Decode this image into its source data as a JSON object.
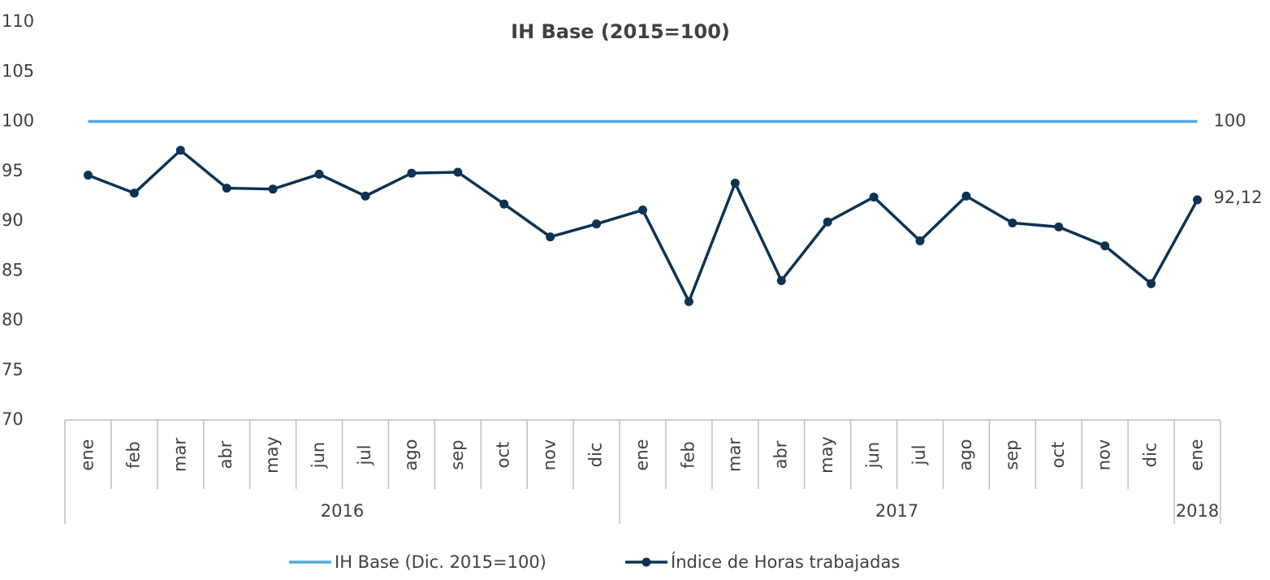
{
  "chart_data": {
    "type": "line",
    "title": "IH Base (2015=100)",
    "categories": [
      "ene",
      "feb",
      "mar",
      "abr",
      "may",
      "jun",
      "jul",
      "ago",
      "sep",
      "oct",
      "nov",
      "dic",
      "ene",
      "feb",
      "mar",
      "abr",
      "may",
      "jun",
      "jul",
      "ago",
      "sep",
      "oct",
      "nov",
      "dic",
      "ene"
    ],
    "x_groups": [
      {
        "label": "2016",
        "span": 12
      },
      {
        "label": "2017",
        "span": 12
      },
      {
        "label": "2018",
        "span": 1
      }
    ],
    "series": [
      {
        "name": "IH Base (Dic. 2015=100)",
        "color": "#4fa8dc",
        "marker": false,
        "values": [
          100,
          100,
          100,
          100,
          100,
          100,
          100,
          100,
          100,
          100,
          100,
          100,
          100,
          100,
          100,
          100,
          100,
          100,
          100,
          100,
          100,
          100,
          100,
          100,
          100
        ],
        "value_labels": [
          null,
          null,
          null,
          null,
          null,
          null,
          null,
          null,
          null,
          null,
          null,
          null,
          null,
          null,
          null,
          null,
          null,
          null,
          null,
          null,
          null,
          null,
          null,
          null,
          "100"
        ]
      },
      {
        "name": "Índice de Horas trabajadas",
        "color": "#0d3353",
        "marker": true,
        "values": [
          94.6,
          92.8,
          97.1,
          93.3,
          93.2,
          94.7,
          92.5,
          94.8,
          94.9,
          91.7,
          88.4,
          89.7,
          91.1,
          81.9,
          93.8,
          84.0,
          89.9,
          92.4,
          88.0,
          92.5,
          89.8,
          89.4,
          87.5,
          83.7,
          92.12
        ],
        "value_labels": [
          null,
          null,
          null,
          null,
          null,
          null,
          null,
          null,
          null,
          null,
          null,
          null,
          null,
          null,
          null,
          null,
          null,
          null,
          null,
          null,
          null,
          null,
          null,
          null,
          "92,12"
        ]
      }
    ],
    "ylim": [
      70,
      110
    ],
    "yticks": [
      70,
      75,
      80,
      85,
      90,
      95,
      100,
      105,
      110
    ],
    "grid": false,
    "legend": "bottom"
  }
}
